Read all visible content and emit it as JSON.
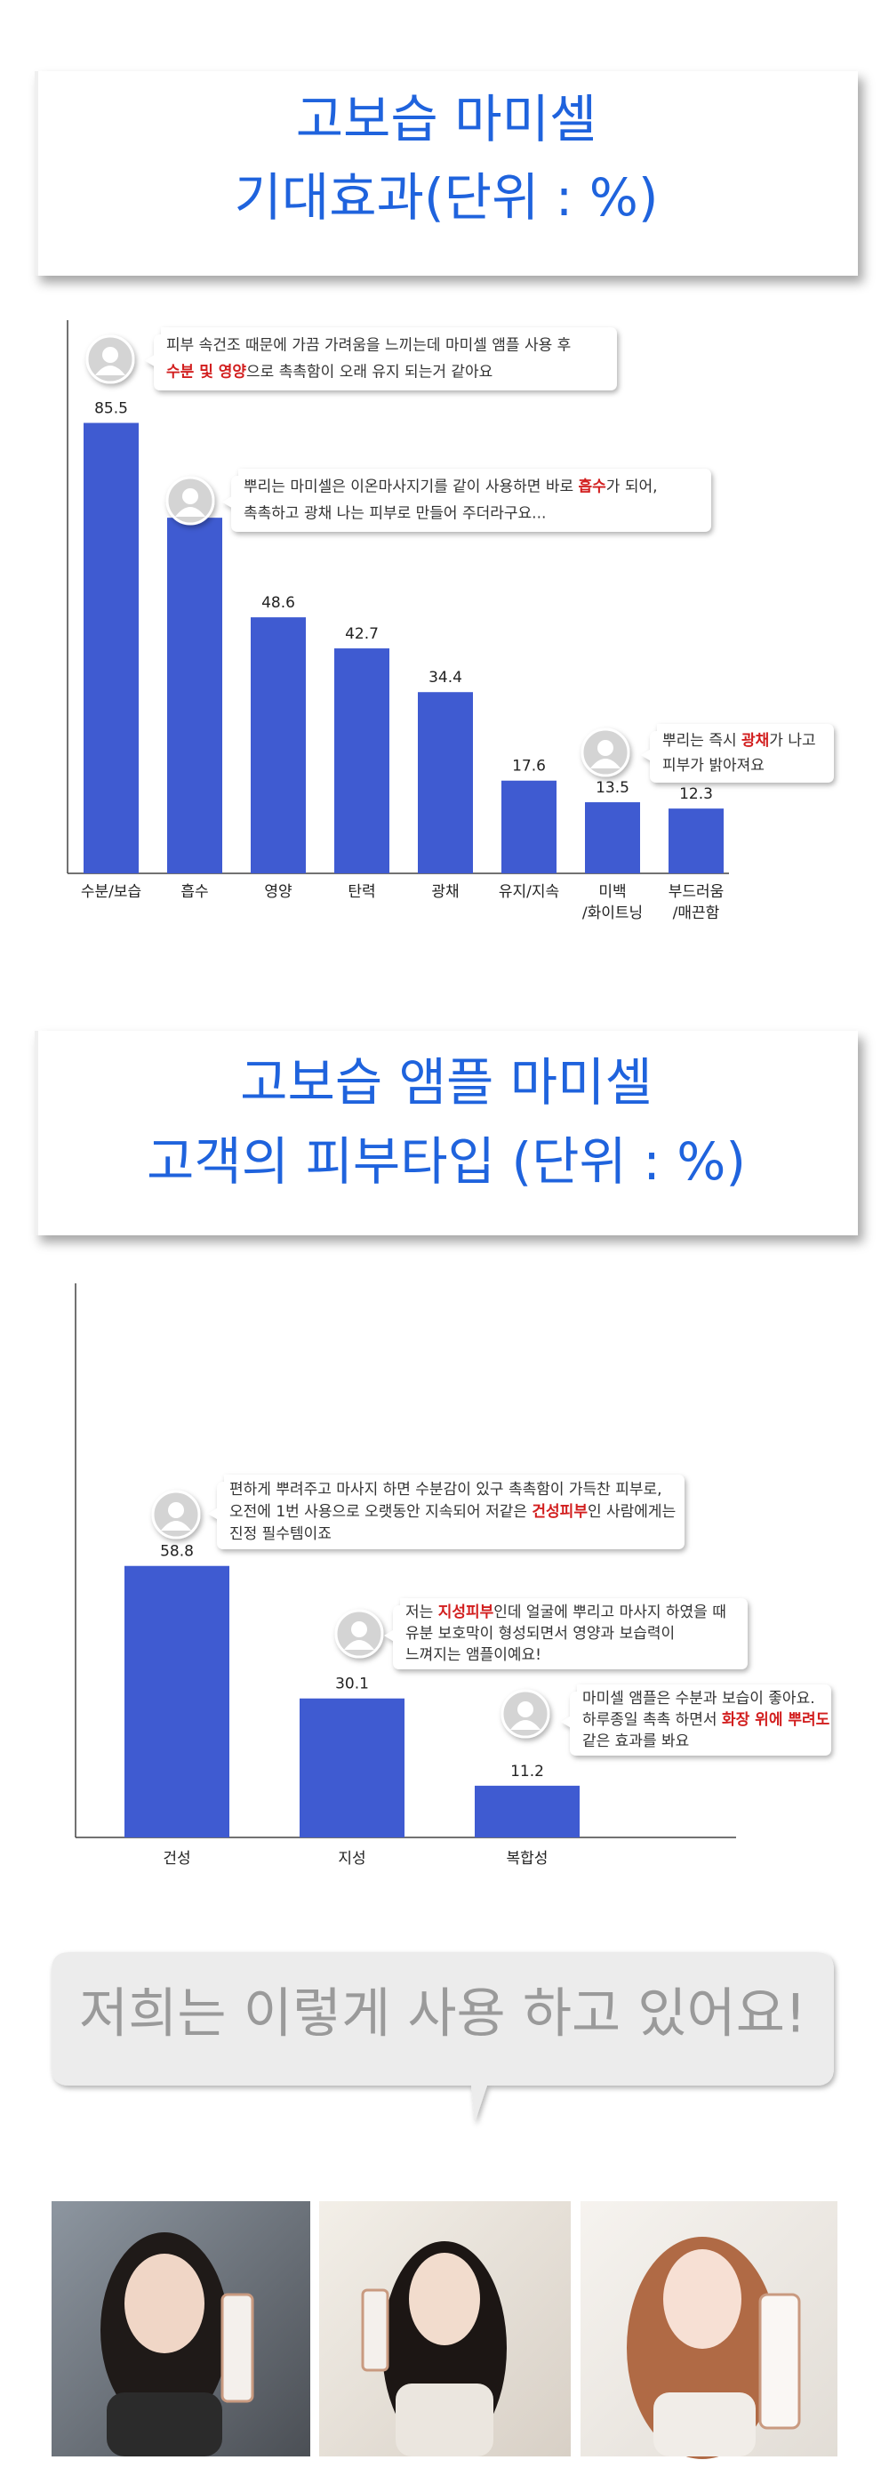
{
  "chart_data": [
    {
      "type": "bar",
      "title": [
        "고보습 마미셀",
        "기대효과(단위 : %)"
      ],
      "categories": [
        [
          "수분/보습"
        ],
        [
          "흡수"
        ],
        [
          "영양"
        ],
        [
          "탄력"
        ],
        [
          "광채"
        ],
        [
          "유지/지속"
        ],
        [
          "미백",
          "/화이트닝"
        ],
        [
          "부드러움",
          "/매끈함"
        ]
      ],
      "values": [
        85.5,
        67.5,
        48.6,
        42.7,
        34.4,
        17.6,
        13.5,
        12.3
      ],
      "color": "#3f5bd1",
      "ylim": [
        0,
        105
      ],
      "annotations": [
        {
          "lines": [
            [
              {
                "text": "피부 속건조 때문에 가끔 가려움을 느끼는데 마미셀 앰플 사용 후"
              }
            ],
            [
              {
                "text": "수분 및 영양",
                "em": true
              },
              {
                "text": "으로 촉촉함이 오래 유지 되는거 같아요"
              }
            ]
          ]
        },
        {
          "lines": [
            [
              {
                "text": "뿌리는 마미셀은 이온마사지기를 같이 사용하면 바로 "
              },
              {
                "text": "흡수",
                "em": true
              },
              {
                "text": "가 되어,"
              }
            ],
            [
              {
                "text": "촉촉하고 광채 나는 피부로 만들어 주더라구요..."
              }
            ]
          ]
        },
        {
          "lines": [
            [
              {
                "text": "뿌리는 즉시 "
              },
              {
                "text": "광채",
                "em": true
              },
              {
                "text": "가 나고"
              }
            ],
            [
              {
                "text": "피부가 밝아져요"
              }
            ]
          ]
        }
      ]
    },
    {
      "type": "bar",
      "title": [
        "고보습 앰플 마미셀",
        "고객의 피부타입 (단위 : %)"
      ],
      "categories": [
        [
          "건성"
        ],
        [
          "지성"
        ],
        [
          "복합성"
        ]
      ],
      "values": [
        58.8,
        30.1,
        11.2
      ],
      "color": "#3f5bd1",
      "ylim": [
        0,
        120
      ],
      "annotations": [
        {
          "lines": [
            [
              {
                "text": "편하게 뿌려주고 마사지 하면 수분감이 있구 촉촉함이 가득찬 피부로,"
              }
            ],
            [
              {
                "text": "오전에 1번 사용으로 오랫동안 지속되어 저같은 "
              },
              {
                "text": "건성피부",
                "em": true
              },
              {
                "text": "인 사람에게는"
              }
            ],
            [
              {
                "text": "진정 필수템이죠"
              }
            ]
          ]
        },
        {
          "lines": [
            [
              {
                "text": "저는 "
              },
              {
                "text": "지성피부",
                "em": true
              },
              {
                "text": "인데 얼굴에 뿌리고 마사지 하였을 때"
              }
            ],
            [
              {
                "text": "유분 보호막이 형성되면서  영양과 보습력이"
              }
            ],
            [
              {
                "text": "느껴지는 앰플이예요!"
              }
            ]
          ]
        },
        {
          "lines": [
            [
              {
                "text": "마미셀 앰플은 수분과 보습이 좋아요."
              }
            ],
            [
              {
                "text": "하루종일 촉촉 하면서 "
              },
              {
                "text": "화장 위에 뿌려도",
                "em": true
              }
            ],
            [
              {
                "text": "같은 효과를 봐요"
              }
            ]
          ]
        }
      ]
    }
  ],
  "banner": {
    "text": "저희는 이렇게 사용 하고 있어요!"
  }
}
